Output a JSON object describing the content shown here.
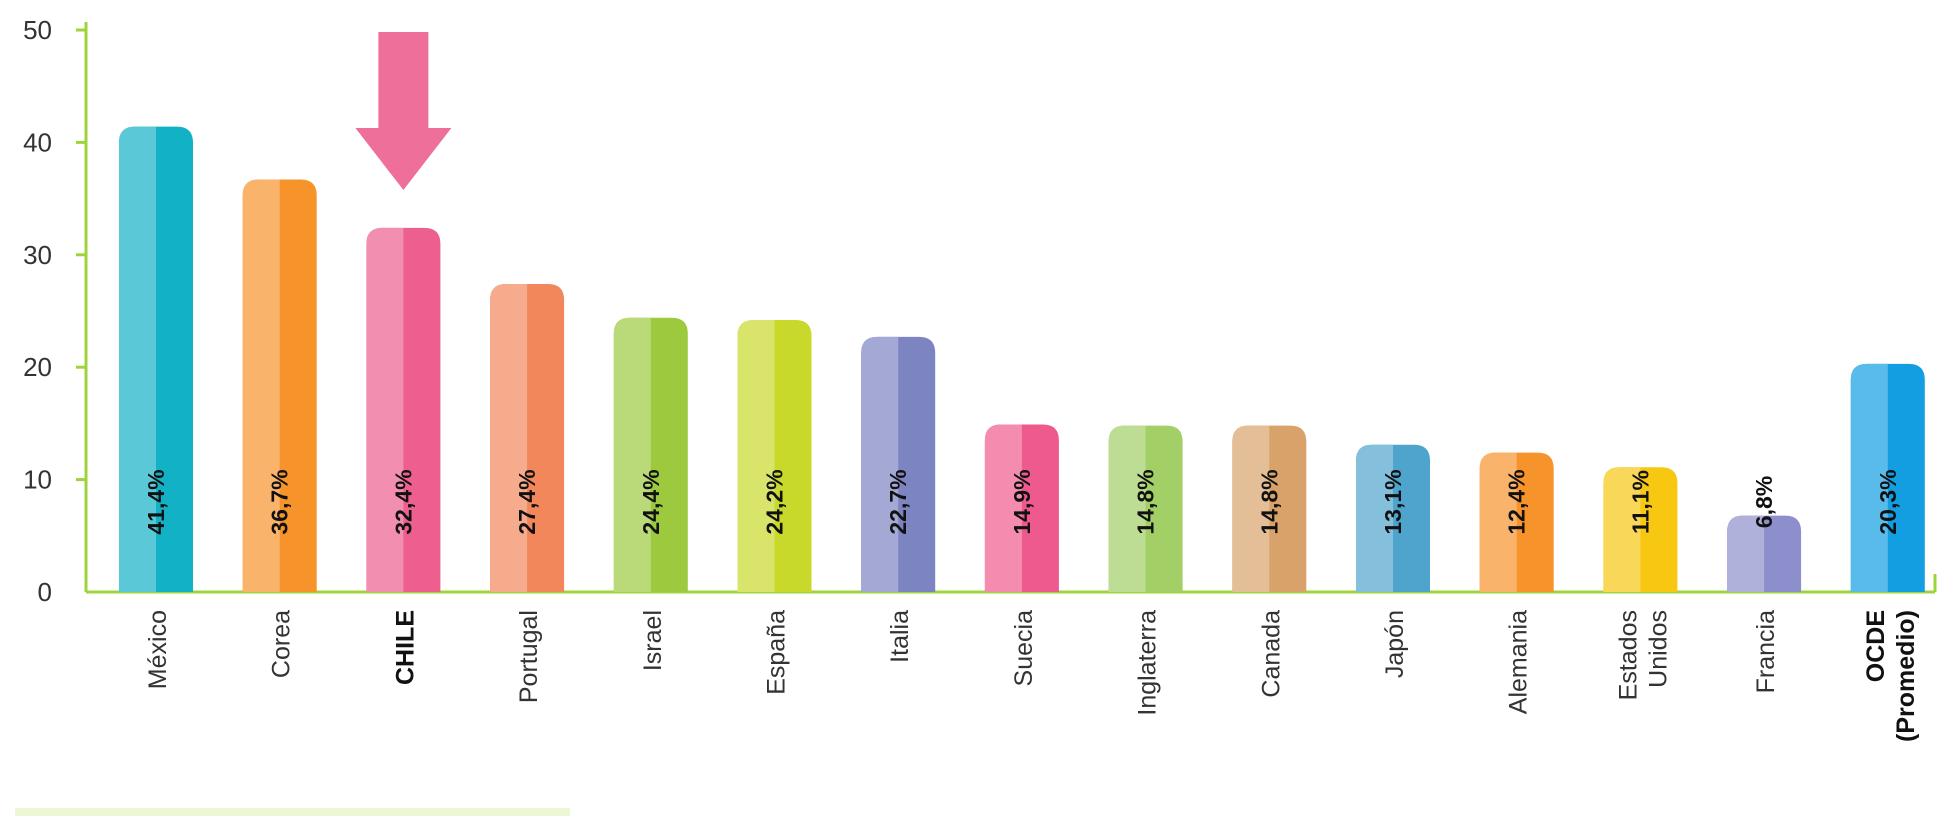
{
  "chart_data": {
    "type": "bar",
    "ylim": [
      0,
      50
    ],
    "yticks": [
      "0",
      "10",
      "20",
      "30",
      "40",
      "50"
    ],
    "grid": false,
    "highlight_marker": "down-arrow-over-CHILE",
    "categories": [
      {
        "label": "México",
        "value": 41.4,
        "value_label": "41,4%",
        "color": "#13b1c6",
        "bold": false
      },
      {
        "label": "Corea",
        "value": 36.7,
        "value_label": "36,7%",
        "color": "#f6932b",
        "bold": false
      },
      {
        "label": "CHILE",
        "value": 32.4,
        "value_label": "32,4%",
        "color": "#ec5f8f",
        "bold": true
      },
      {
        "label": "Portugal",
        "value": 27.4,
        "value_label": "27,4%",
        "color": "#f3875c",
        "bold": false
      },
      {
        "label": "Israel",
        "value": 24.4,
        "value_label": "24,4%",
        "color": "#9cc93e",
        "bold": false
      },
      {
        "label": "España",
        "value": 24.2,
        "value_label": "24,2%",
        "color": "#c8d92c",
        "bold": false
      },
      {
        "label": "Italia",
        "value": 22.7,
        "value_label": "22,7%",
        "color": "#7c84c2",
        "bold": false
      },
      {
        "label": "Suecia",
        "value": 14.9,
        "value_label": "14,9%",
        "color": "#ee5a8d",
        "bold": false
      },
      {
        "label": "Inglaterra",
        "value": 14.8,
        "value_label": "14,8%",
        "color": "#a2cf66",
        "bold": false
      },
      {
        "label": "Canada",
        "value": 14.8,
        "value_label": "14,8%",
        "color": "#d9a26a",
        "bold": false
      },
      {
        "label": "Japón",
        "value": 13.1,
        "value_label": "13,1%",
        "color": "#4fa4cd",
        "bold": false
      },
      {
        "label": "Alemania",
        "value": 12.4,
        "value_label": "12,4%",
        "color": "#f6932b",
        "bold": false
      },
      {
        "label": [
          "Estados",
          "Unidos"
        ],
        "value": 11.1,
        "value_label": "11,1%",
        "color": "#f7c712",
        "bold": false
      },
      {
        "label": "Francia",
        "value": 6.8,
        "value_label": "6,8%",
        "color": "#8d8fcc",
        "bold": false
      },
      {
        "label": [
          "OCDE",
          "(Promedio)"
        ],
        "value": 20.3,
        "value_label": "20,3%",
        "color": "#129ee1",
        "bold": true
      }
    ],
    "colors": {
      "axis": "#9fd33c",
      "arrow": "#ef6f9b",
      "bottom_bar": "#eef7d4"
    }
  }
}
